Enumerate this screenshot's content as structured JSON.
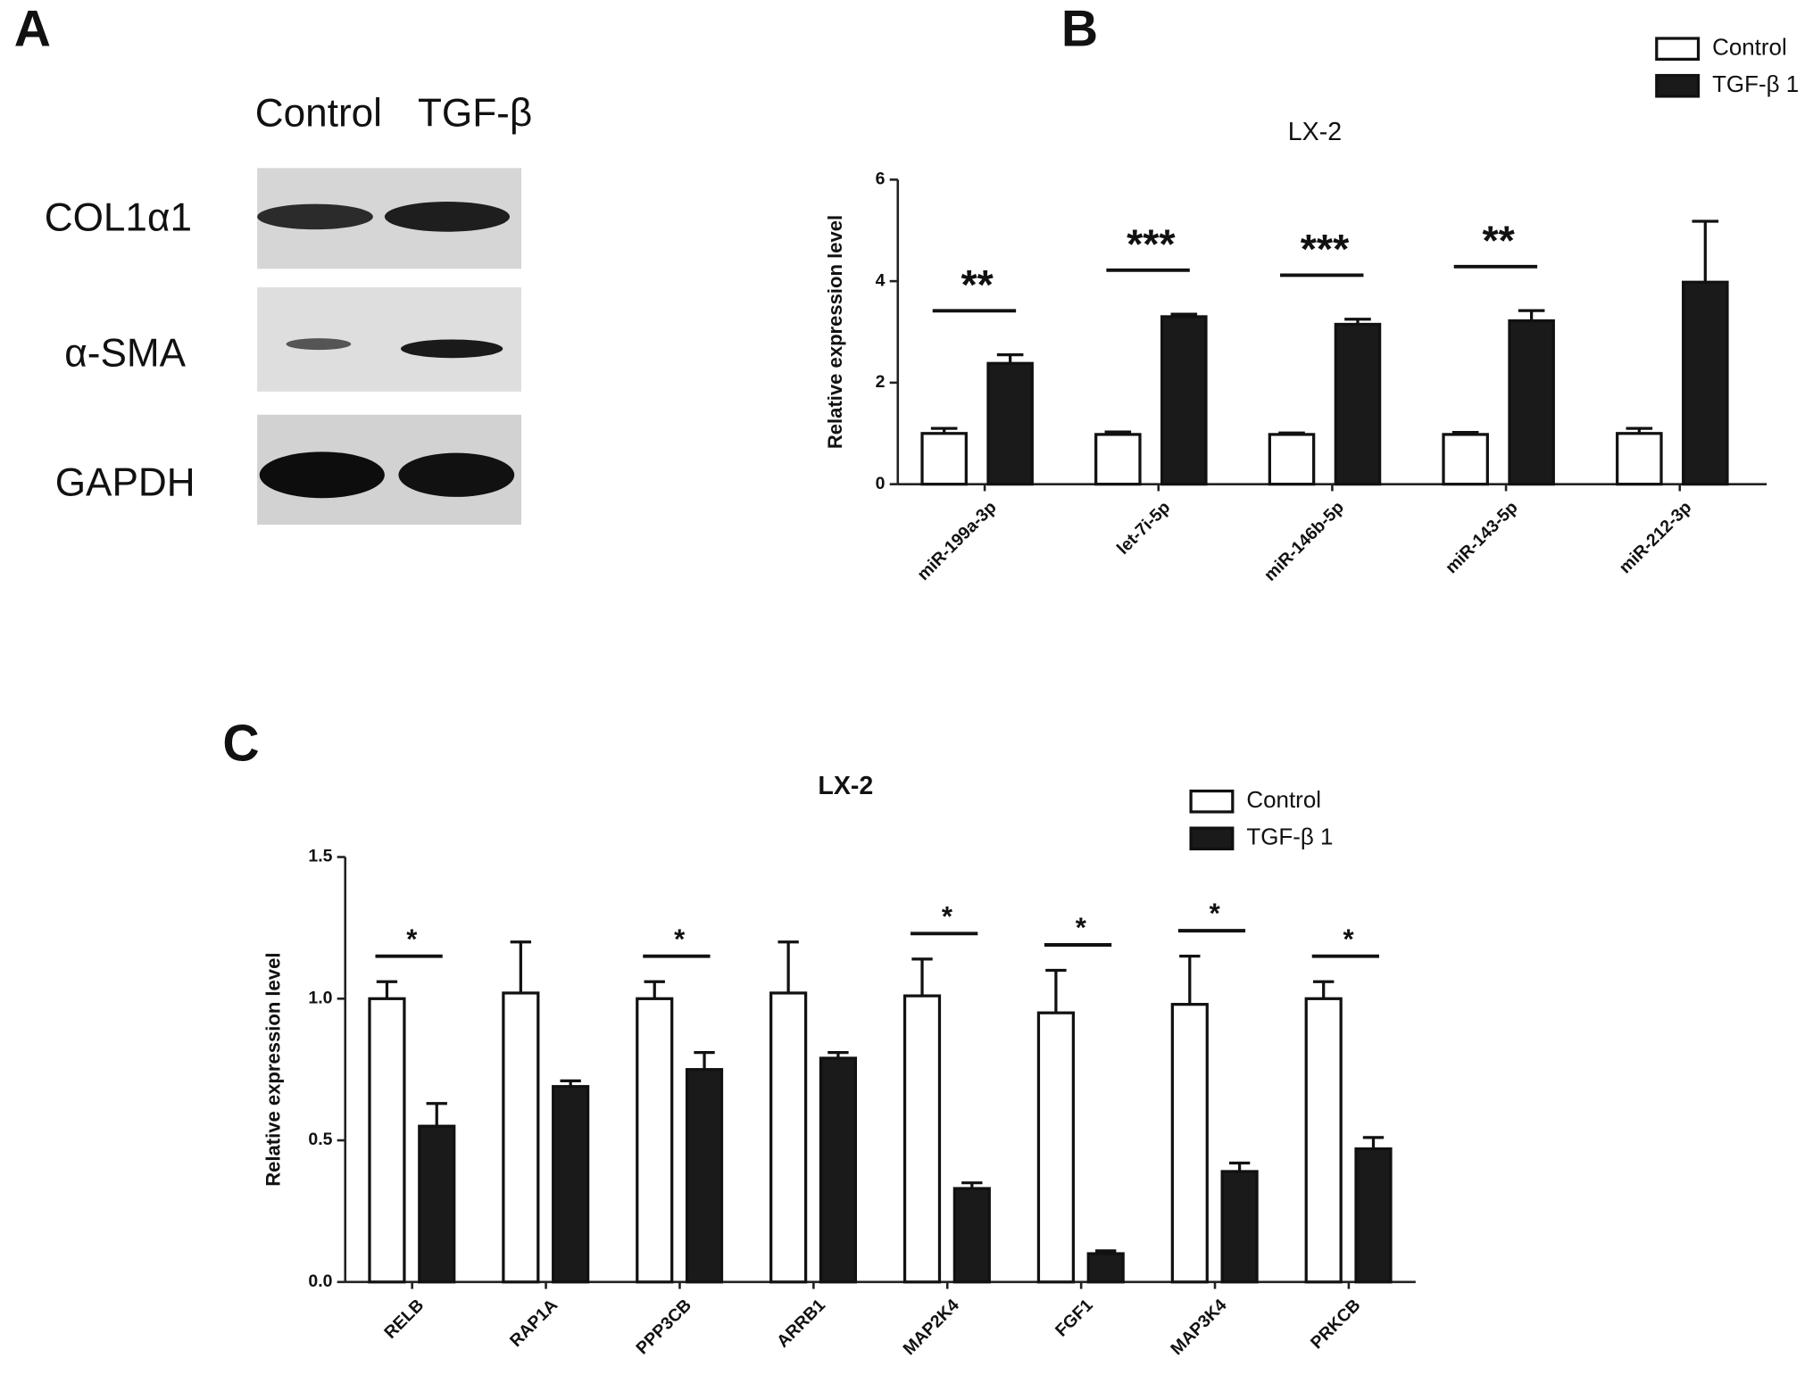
{
  "figure": {
    "panel_labels": [
      "A",
      "B",
      "C"
    ]
  },
  "blot": {
    "columns": [
      "Control",
      "TGF-β"
    ],
    "rows": [
      "COL1α1",
      "α-SMA",
      "GAPDH"
    ]
  },
  "chart_data": [
    {
      "type": "bar",
      "title": "LX-2",
      "y_label": "Relative expression level",
      "categories": [
        "miR-199a-3p",
        "let-7i-5p",
        "miR-146b-5p",
        "miR-143-5p",
        "miR-212-3p"
      ],
      "series": [
        {
          "name": "Control",
          "color": "#ffffff",
          "values": [
            1.0,
            0.98,
            0.98,
            0.98,
            1.0
          ],
          "errors": [
            0.1,
            0.05,
            0.03,
            0.04,
            0.1
          ]
        },
        {
          "name": "TGF-β 1",
          "color": "#1a1a1a",
          "values": [
            2.38,
            3.3,
            3.15,
            3.22,
            3.98
          ],
          "errors": [
            0.17,
            0.05,
            0.1,
            0.2,
            1.2
          ]
        }
      ],
      "significance": [
        "**",
        "***",
        "***",
        "**",
        null
      ],
      "ylim": [
        0,
        6
      ],
      "yticks": [
        0,
        2,
        4,
        6
      ],
      "legend": "top-right"
    },
    {
      "type": "bar",
      "title": "LX-2",
      "y_label": "Relative expression level",
      "categories": [
        "RELB",
        "RAP1A",
        "PPP3CB",
        "ARRB1",
        "MAP2K4",
        "FGF1",
        "MAP3K4",
        "PRKCB"
      ],
      "series": [
        {
          "name": "Control",
          "color": "#ffffff",
          "values": [
            1.0,
            1.02,
            1.0,
            1.02,
            1.01,
            0.95,
            0.98,
            1.0
          ],
          "errors": [
            0.06,
            0.18,
            0.06,
            0.18,
            0.13,
            0.15,
            0.17,
            0.06
          ]
        },
        {
          "name": "TGF-β 1",
          "color": "#1a1a1a",
          "values": [
            0.55,
            0.69,
            0.75,
            0.79,
            0.33,
            0.1,
            0.39,
            0.47
          ],
          "errors": [
            0.08,
            0.02,
            0.06,
            0.02,
            0.02,
            0.01,
            0.03,
            0.04
          ]
        }
      ],
      "significance": [
        "*",
        null,
        "*",
        null,
        "*",
        "*",
        "*",
        "*"
      ],
      "ylim": [
        0,
        1.5
      ],
      "yticks": [
        {
          "value": 0,
          "label": "0.0"
        },
        {
          "value": 0.5,
          "label": "0.5"
        },
        {
          "value": 1,
          "label": "1.0"
        },
        {
          "value": 1.5,
          "label": "1.5"
        }
      ],
      "legend": "top-right"
    }
  ]
}
